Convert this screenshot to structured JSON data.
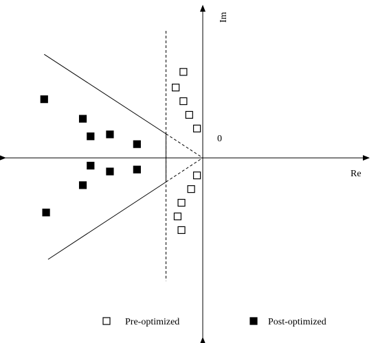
{
  "chart_data": {
    "type": "scatter",
    "title": "",
    "axes": {
      "x_label": "Re",
      "y_label": "Im",
      "origin_label": "0"
    },
    "ranges": {
      "x": [
        -10.2,
        8.6
      ],
      "y": [
        -9.2,
        7.8
      ]
    },
    "legend": {
      "placement": "bottom"
    },
    "grid": false,
    "colors": {
      "axis": "#000000",
      "filled": "#000000",
      "open_fill": "#ffffff"
    },
    "series": [
      {
        "name": "Pre-optimized",
        "marker": "open-square",
        "points": [
          {
            "x": -1.0,
            "y": 4.4
          },
          {
            "x": -1.4,
            "y": 3.6
          },
          {
            "x": -1.0,
            "y": 2.9
          },
          {
            "x": -0.7,
            "y": 2.2
          },
          {
            "x": -0.3,
            "y": 1.5
          },
          {
            "x": -0.3,
            "y": -0.9
          },
          {
            "x": -0.6,
            "y": -1.6
          },
          {
            "x": -1.1,
            "y": -2.3
          },
          {
            "x": -1.3,
            "y": -3.0
          },
          {
            "x": -1.1,
            "y": -3.7
          }
        ]
      },
      {
        "name": "Post-optimized",
        "marker": "filled-square",
        "points": [
          {
            "x": -8.2,
            "y": 3.0
          },
          {
            "x": -6.2,
            "y": 2.0
          },
          {
            "x": -5.8,
            "y": 1.1
          },
          {
            "x": -4.8,
            "y": 1.2
          },
          {
            "x": -3.4,
            "y": 0.7
          },
          {
            "x": -5.8,
            "y": -0.4
          },
          {
            "x": -4.8,
            "y": -0.7
          },
          {
            "x": -3.4,
            "y": -0.6
          },
          {
            "x": -6.2,
            "y": -1.4
          },
          {
            "x": -8.1,
            "y": -2.8
          }
        ]
      }
    ],
    "boundary": {
      "vertex": {
        "x": 0.0,
        "y": 0.0
      },
      "upper_end": {
        "x": -8.2,
        "y": 5.3
      },
      "lower_end": {
        "x": -8.0,
        "y": -5.2
      },
      "solid_until_x": -1.9,
      "dashed_vertical_x": -1.9,
      "dashed_vertical_y": [
        -6.3,
        6.5
      ]
    }
  }
}
